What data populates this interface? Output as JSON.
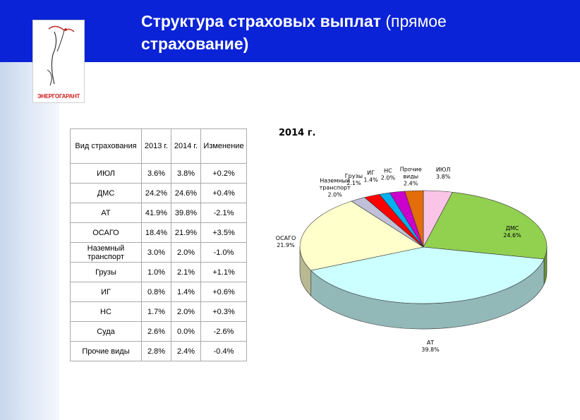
{
  "header": {
    "title_main": "Структура страховых выплат",
    "title_paren_1": "(прямое",
    "title_line2": "страхование)"
  },
  "logo": {
    "text": "ЭНЕРГОГАРАНТ"
  },
  "table": {
    "headers": [
      "Вид страхования",
      "2013 г.",
      "2014 г.",
      "Изменение"
    ],
    "rows": [
      [
        "ИЮЛ",
        "3.6%",
        "3.8%",
        "+0.2%"
      ],
      [
        "ДМС",
        "24.2%",
        "24.6%",
        "+0.4%"
      ],
      [
        "АТ",
        "41.9%",
        "39.8%",
        "-2.1%"
      ],
      [
        "ОСАГО",
        "18.4%",
        "21.9%",
        "+3.5%"
      ],
      [
        "Наземный транспорт",
        "3.0%",
        "2.0%",
        "-1.0%"
      ],
      [
        "Грузы",
        "1.0%",
        "2.1%",
        "+1.1%"
      ],
      [
        "ИГ",
        "0.8%",
        "1.4%",
        "+0.6%"
      ],
      [
        "НС",
        "1.7%",
        "2.0%",
        "+0.3%"
      ],
      [
        "Суда",
        "2.6%",
        "0.0%",
        "-2.6%"
      ],
      [
        "Прочие виды",
        "2.8%",
        "2.4%",
        "-0.4%"
      ]
    ]
  },
  "chart_data": {
    "type": "pie",
    "title": "2014 г.",
    "slices": [
      {
        "label": "ИЮЛ",
        "value": 3.8,
        "value_label": "3.8%",
        "color": "#f9c4e6"
      },
      {
        "label": "ДМС",
        "value": 24.6,
        "value_label": "24.6%",
        "color": "#92d050"
      },
      {
        "label": "АТ",
        "value": 39.8,
        "value_label": "39.8%",
        "color": "#ccffff"
      },
      {
        "label": "ОСАГО",
        "value": 21.9,
        "value_label": "21.9%",
        "color": "#ffffcc"
      },
      {
        "label": "Наземный транспорт",
        "value": 2.0,
        "value_label": "2.0%",
        "color": "#c0c0d8"
      },
      {
        "label": "Грузы",
        "value": 2.1,
        "value_label": "2.1%",
        "color": "#ff0000"
      },
      {
        "label": "ИГ",
        "value": 1.4,
        "value_label": "1.4%",
        "color": "#00b0f0"
      },
      {
        "label": "НС",
        "value": 2.0,
        "value_label": "2.0%",
        "color": "#cc00cc"
      },
      {
        "label": "Прочие виды",
        "value": 2.4,
        "value_label": "2.4%",
        "color": "#e46c0a"
      }
    ]
  }
}
